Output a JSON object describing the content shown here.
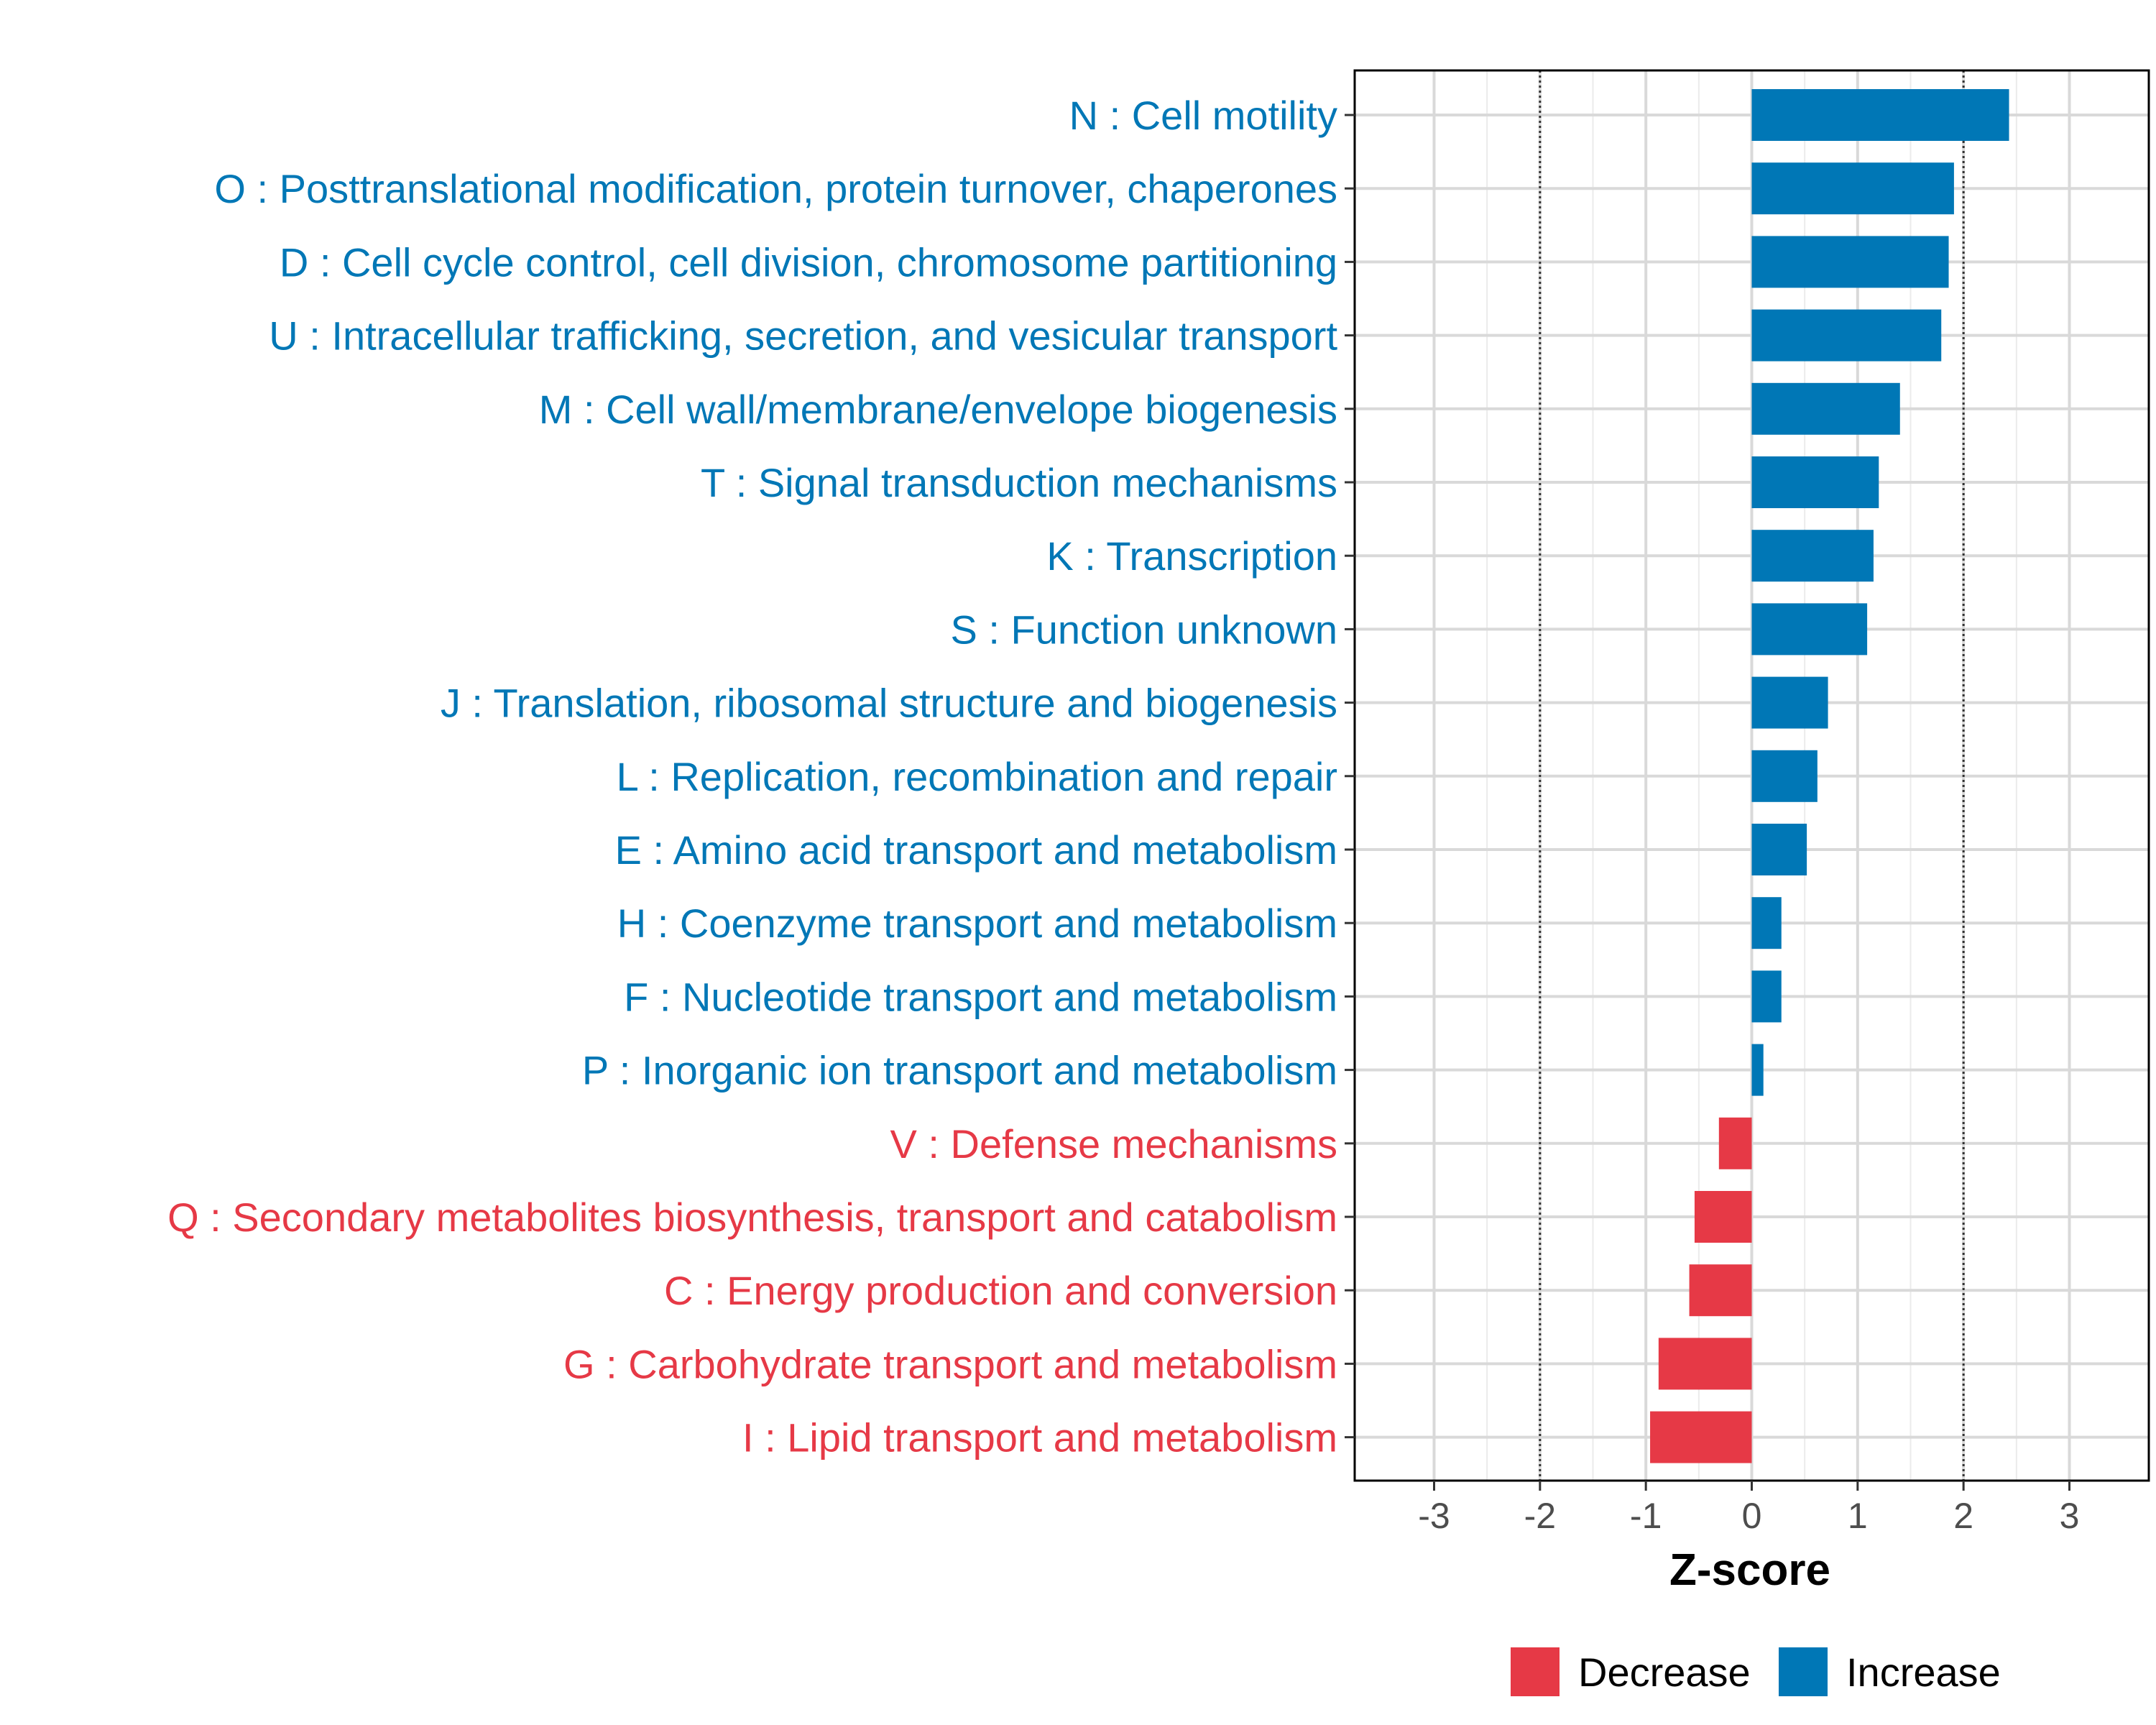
{
  "chart_data": {
    "type": "bar",
    "orientation": "horizontal",
    "title": "",
    "xlabel": "Z-score",
    "ylabel": "",
    "xlim": [
      -3.75,
      3.75
    ],
    "x_ticks": [
      -3,
      -2,
      -1,
      0,
      1,
      2,
      3
    ],
    "reference_lines": [
      -2,
      2
    ],
    "grid": true,
    "categories": [
      "N : Cell motility",
      "O : Posttranslational modification, protein turnover, chaperones",
      "D : Cell cycle control, cell division, chromosome partitioning",
      "U : Intracellular trafficking, secretion, and vesicular transport",
      "M : Cell wall/membrane/envelope biogenesis",
      "T : Signal transduction mechanisms",
      "K : Transcription",
      "S : Function unknown",
      "J : Translation, ribosomal structure and biogenesis",
      "L : Replication, recombination and repair",
      "E : Amino acid transport and metabolism",
      "H : Coenzyme transport and metabolism",
      "F : Nucleotide transport and metabolism",
      "P : Inorganic ion transport and metabolism",
      "V : Defense mechanisms",
      "Q : Secondary metabolites biosynthesis, transport and catabolism",
      "C : Energy production and conversion",
      "G : Carbohydrate transport and metabolism",
      "I : Lipid transport and metabolism"
    ],
    "values": [
      2.43,
      1.91,
      1.86,
      1.79,
      1.4,
      1.2,
      1.15,
      1.09,
      0.72,
      0.62,
      0.52,
      0.28,
      0.28,
      0.11,
      -0.31,
      -0.54,
      -0.59,
      -0.88,
      -0.96
    ],
    "groups": [
      "Increase",
      "Increase",
      "Increase",
      "Increase",
      "Increase",
      "Increase",
      "Increase",
      "Increase",
      "Increase",
      "Increase",
      "Increase",
      "Increase",
      "Increase",
      "Increase",
      "Decrease",
      "Decrease",
      "Decrease",
      "Decrease",
      "Decrease"
    ],
    "colors": {
      "Decrease": "#e63946",
      "Increase": "#0077b6"
    },
    "legend": {
      "position": "bottom",
      "entries": [
        {
          "label": "Decrease",
          "color": "#e63946"
        },
        {
          "label": "Increase",
          "color": "#0077b6"
        }
      ]
    }
  }
}
